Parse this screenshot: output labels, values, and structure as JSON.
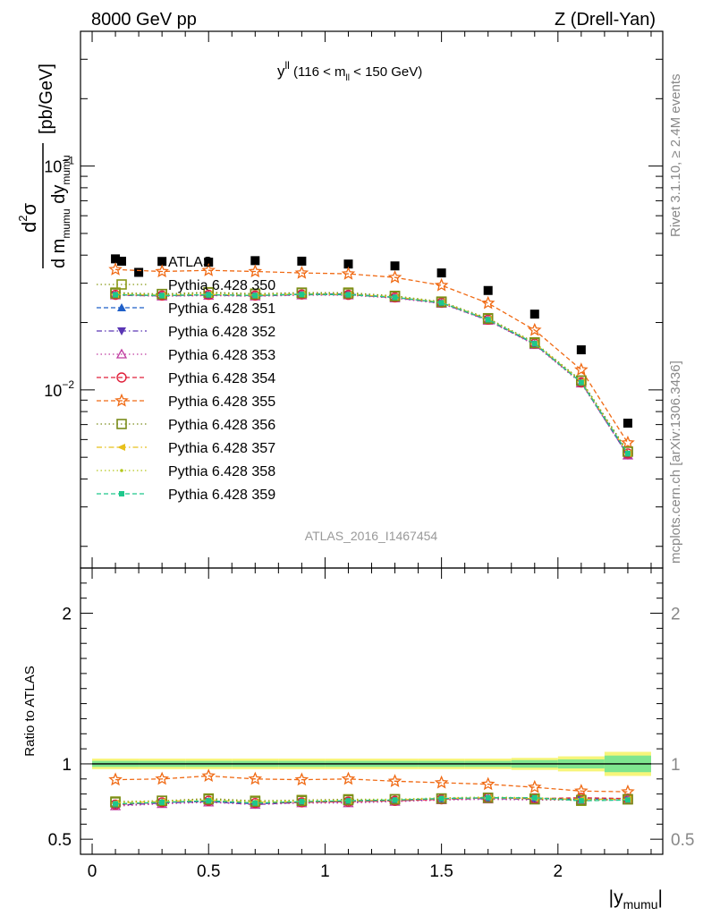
{
  "header": {
    "left": "8000 GeV pp",
    "right": "Z (Drell-Yan)"
  },
  "side_labels": {
    "rivet": "Rivet 3.1.10, ≥ 2.4M events",
    "mcplots": "mcplots.cern.ch [arXiv:1306.3436]"
  },
  "chart_data": [
    {
      "type": "scatter",
      "title": "y^ll (116 < m_ll < 150 GeV)",
      "title_parts": {
        "main": "y",
        "sup": "ll",
        "rest": " (116 < m",
        "sub": "ll",
        "end": " < 150 GeV)"
      },
      "ylabel": "d²σ / d m_mumu dy_mumu [pb/GeV]",
      "ylabel_parts": {
        "num": "d",
        "num_sup": "2",
        "num_sym": "σ",
        "den_a": "d m",
        "den_a_sub": "mumu",
        "den_b": " dy",
        "den_b_sub": "mumu",
        "unit": "[pb/GeV]"
      },
      "ylog": true,
      "ylim": [
        0.0016,
        0.4
      ],
      "xlim": [
        -0.05,
        2.45
      ],
      "yticks": [
        {
          "value": 0.1,
          "base": "10",
          "exp": "−1"
        },
        {
          "value": 0.01,
          "base": "10",
          "exp": "−2"
        }
      ],
      "watermark": "ATLAS_2016_I1467454",
      "x": [
        0.1,
        0.3,
        0.5,
        0.7,
        0.9,
        1.1,
        1.3,
        1.5,
        1.7,
        1.9,
        2.1,
        2.3
      ],
      "series": [
        {
          "name": "ATLAS",
          "color": "#000000",
          "marker": "square-filled",
          "line": "none",
          "values": [
            0.0385,
            0.0375,
            0.0372,
            0.0378,
            0.0376,
            0.0365,
            0.0358,
            0.0333,
            0.0278,
            0.0218,
            0.0151,
            0.0071
          ],
          "extra_x": [
            0.2
          ],
          "extra_values": [
            0.0335
          ]
        },
        {
          "name": "Pythia 6.428 350",
          "color": "#8a9a18",
          "marker": "square-open",
          "line": "dotted",
          "values": [
            0.0272,
            0.0268,
            0.0273,
            0.0269,
            0.0272,
            0.0272,
            0.0263,
            0.0248,
            0.0209,
            0.0163,
            0.011,
            0.0053
          ]
        },
        {
          "name": "Pythia 6.428 351",
          "color": "#1f5fc8",
          "marker": "triangle-up-filled",
          "line": "dashed",
          "values": [
            0.0266,
            0.0264,
            0.0266,
            0.0264,
            0.0268,
            0.0268,
            0.0259,
            0.0245,
            0.0205,
            0.016,
            0.0108,
            0.0051
          ]
        },
        {
          "name": "Pythia 6.428 352",
          "color": "#5a36b4",
          "marker": "triangle-down-filled",
          "line": "dashdot",
          "values": [
            0.0265,
            0.0263,
            0.0265,
            0.0263,
            0.0266,
            0.0266,
            0.0258,
            0.0244,
            0.0205,
            0.016,
            0.0108,
            0.0051
          ]
        },
        {
          "name": "Pythia 6.428 353",
          "color": "#c03ca0",
          "marker": "triangle-up-open",
          "line": "dotted",
          "values": [
            0.0265,
            0.0262,
            0.0264,
            0.0262,
            0.0265,
            0.0265,
            0.0257,
            0.0243,
            0.0204,
            0.0159,
            0.0107,
            0.0051
          ]
        },
        {
          "name": "Pythia 6.428 354",
          "color": "#e0203a",
          "marker": "circle-open",
          "line": "dashed",
          "values": [
            0.0266,
            0.0264,
            0.0266,
            0.0264,
            0.0267,
            0.0266,
            0.0259,
            0.0245,
            0.0206,
            0.0161,
            0.0108,
            0.0052
          ]
        },
        {
          "name": "Pythia 6.428 355",
          "color": "#f06a14",
          "marker": "star-open",
          "line": "dashed",
          "values": [
            0.0345,
            0.0338,
            0.0342,
            0.0338,
            0.0333,
            0.033,
            0.0318,
            0.0293,
            0.0244,
            0.0185,
            0.0123,
            0.0058
          ]
        },
        {
          "name": "Pythia 6.428 356",
          "color": "#7a8c1a",
          "marker": "square-open",
          "line": "dotted",
          "values": [
            0.027,
            0.0268,
            0.0272,
            0.0268,
            0.0271,
            0.027,
            0.0262,
            0.0247,
            0.0208,
            0.0162,
            0.011,
            0.0053
          ]
        },
        {
          "name": "Pythia 6.428 357",
          "color": "#e8c01c",
          "marker": "triangle-left-filled",
          "line": "dashdot",
          "values": [
            0.0267,
            0.0265,
            0.0267,
            0.0265,
            0.0268,
            0.0267,
            0.026,
            0.0246,
            0.0207,
            0.0161,
            0.0109,
            0.0052
          ]
        },
        {
          "name": "Pythia 6.428 358",
          "color": "#b4c81e",
          "marker": "dot-small",
          "line": "dotted",
          "values": [
            0.0268,
            0.0266,
            0.0268,
            0.0266,
            0.0269,
            0.0268,
            0.0261,
            0.0246,
            0.0207,
            0.0162,
            0.0109,
            0.0052
          ]
        },
        {
          "name": "Pythia 6.428 359",
          "color": "#1ec88c",
          "marker": "square-filled-small",
          "line": "dashed",
          "values": [
            0.0266,
            0.0264,
            0.0266,
            0.0264,
            0.0267,
            0.0266,
            0.0259,
            0.0245,
            0.0206,
            0.0161,
            0.0108,
            0.0052
          ]
        }
      ]
    },
    {
      "type": "scatter",
      "xlabel": "|y_mumu|",
      "xlabel_parts": {
        "main": "|y",
        "sub": "mumu",
        "end": "|"
      },
      "ylabel": "Ratio to ATLAS",
      "ylim": [
        0.4,
        2.3
      ],
      "xlim": [
        -0.05,
        2.45
      ],
      "xticks": [
        "0",
        "0.5",
        "1",
        "1.5",
        "2"
      ],
      "yticks": [
        "0.5",
        "1",
        "2"
      ],
      "band_color_outer": "#f7f57a",
      "band_color_inner": "#7fe58f",
      "x": [
        0.1,
        0.3,
        0.5,
        0.7,
        0.9,
        1.1,
        1.3,
        1.5,
        1.7,
        1.9,
        2.1,
        2.3
      ],
      "band": {
        "x_edges": [
          0.0,
          0.2,
          0.4,
          0.6,
          0.8,
          1.0,
          1.2,
          1.4,
          1.6,
          1.8,
          2.0,
          2.2,
          2.4
        ],
        "outer": [
          0.035,
          0.035,
          0.035,
          0.035,
          0.035,
          0.035,
          0.035,
          0.035,
          0.035,
          0.04,
          0.05,
          0.08
        ],
        "inner": [
          0.02,
          0.02,
          0.02,
          0.02,
          0.02,
          0.02,
          0.02,
          0.02,
          0.02,
          0.025,
          0.03,
          0.055
        ]
      },
      "series": [
        {
          "name": "Pythia 6.428 350",
          "color": "#8a9a18",
          "marker": "square-open",
          "line": "dotted",
          "values": [
            0.75,
            0.755,
            0.77,
            0.755,
            0.76,
            0.765,
            0.765,
            0.77,
            0.775,
            0.77,
            0.755,
            0.765
          ]
        },
        {
          "name": "Pythia 6.428 351",
          "color": "#1f5fc8",
          "marker": "triangle-up-filled",
          "line": "dashed",
          "values": [
            0.73,
            0.745,
            0.75,
            0.735,
            0.745,
            0.755,
            0.76,
            0.77,
            0.775,
            0.77,
            0.765,
            0.77
          ]
        },
        {
          "name": "Pythia 6.428 352",
          "color": "#5a36b4",
          "marker": "triangle-down-filled",
          "line": "dashdot",
          "values": [
            0.725,
            0.74,
            0.75,
            0.73,
            0.745,
            0.75,
            0.755,
            0.765,
            0.77,
            0.765,
            0.765,
            0.765
          ]
        },
        {
          "name": "Pythia 6.428 353",
          "color": "#c03ca0",
          "marker": "triangle-up-open",
          "line": "dotted",
          "values": [
            0.72,
            0.735,
            0.745,
            0.73,
            0.74,
            0.74,
            0.75,
            0.76,
            0.765,
            0.76,
            0.76,
            0.76
          ]
        },
        {
          "name": "Pythia 6.428 354",
          "color": "#e0203a",
          "marker": "circle-open",
          "line": "dashed",
          "values": [
            0.73,
            0.745,
            0.755,
            0.74,
            0.745,
            0.75,
            0.755,
            0.765,
            0.775,
            0.77,
            0.775,
            0.77
          ]
        },
        {
          "name": "Pythia 6.428 355",
          "color": "#f06a14",
          "marker": "star-open",
          "line": "dashed",
          "values": [
            0.895,
            0.9,
            0.92,
            0.9,
            0.895,
            0.9,
            0.885,
            0.875,
            0.865,
            0.845,
            0.82,
            0.815
          ]
        },
        {
          "name": "Pythia 6.428 356",
          "color": "#7a8c1a",
          "marker": "square-open",
          "line": "dotted",
          "values": [
            0.745,
            0.755,
            0.765,
            0.75,
            0.755,
            0.76,
            0.765,
            0.77,
            0.775,
            0.765,
            0.76,
            0.765
          ]
        },
        {
          "name": "Pythia 6.428 357",
          "color": "#e8c01c",
          "marker": "triangle-left-filled",
          "line": "dashdot",
          "values": [
            0.74,
            0.75,
            0.76,
            0.745,
            0.75,
            0.755,
            0.76,
            0.77,
            0.775,
            0.77,
            0.765,
            0.765
          ]
        },
        {
          "name": "Pythia 6.428 358",
          "color": "#b4c81e",
          "marker": "dot-small",
          "line": "dotted",
          "values": [
            0.745,
            0.755,
            0.76,
            0.75,
            0.755,
            0.76,
            0.765,
            0.775,
            0.78,
            0.775,
            0.765,
            0.765
          ]
        },
        {
          "name": "Pythia 6.428 359",
          "color": "#1ec88c",
          "marker": "square-filled-small",
          "line": "dashed",
          "values": [
            0.735,
            0.745,
            0.755,
            0.74,
            0.75,
            0.755,
            0.76,
            0.77,
            0.775,
            0.775,
            0.755,
            0.76
          ]
        }
      ]
    }
  ]
}
